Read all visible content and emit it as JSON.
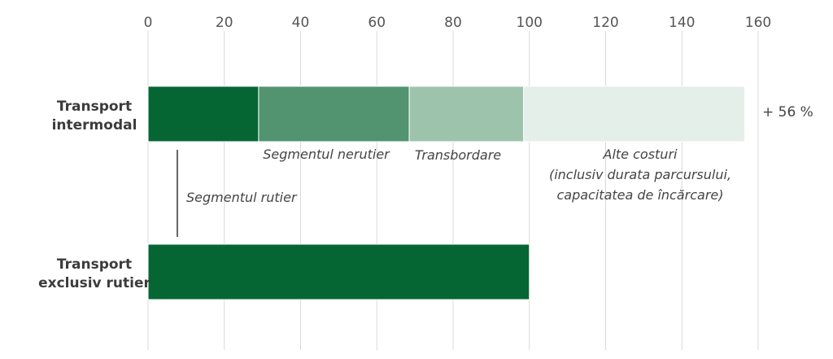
{
  "chart_data": {
    "type": "bar",
    "orientation": "horizontal",
    "stacked": true,
    "xlim": [
      0,
      160
    ],
    "ticks": [
      0,
      20,
      40,
      60,
      80,
      100,
      120,
      140,
      160
    ],
    "grid": true,
    "categories": [
      {
        "key": "intermodal",
        "lines": [
          "Transport",
          "intermodal"
        ]
      },
      {
        "key": "rutier",
        "lines": [
          "Transport",
          "exclusiv rutier"
        ]
      }
    ],
    "series": [
      {
        "name": "Segmentul rutier",
        "color": "#066633",
        "values": [
          29,
          100
        ]
      },
      {
        "name": "Segmentul nerutier",
        "color": "#529370",
        "values": [
          39.5,
          0
        ]
      },
      {
        "name": "Transbordare",
        "color": "#9dc3ad",
        "values": [
          30,
          0
        ]
      },
      {
        "name": "Alte costuri",
        "color": "#e4efe9",
        "values": [
          58,
          0
        ]
      }
    ],
    "annotations": {
      "segmentul_rutier": "Segmentul rutier",
      "segmentul_nerutier": "Segmentul nerutier",
      "transbordare": "Transbordare",
      "alte_costuri": [
        "Alte costuri",
        "(inclusiv durata parcursului,",
        "capacitatea de încărcare)"
      ],
      "increase": "+ 56 %"
    }
  }
}
